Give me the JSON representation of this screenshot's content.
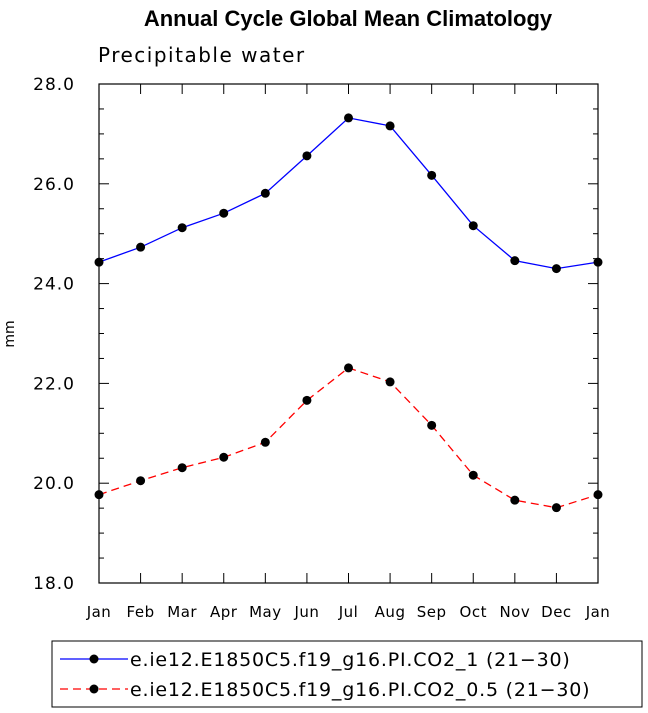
{
  "chart_data": {
    "type": "line",
    "title": "Annual Cycle Global Mean Climatology",
    "subtitle": "Precipitable water",
    "ylabel": "mm",
    "xlabel": "",
    "categories": [
      "Jan",
      "Feb",
      "Mar",
      "Apr",
      "May",
      "Jun",
      "Jul",
      "Aug",
      "Sep",
      "Oct",
      "Nov",
      "Dec",
      "Jan"
    ],
    "ylim": [
      18.0,
      28.0
    ],
    "yticks": [
      "18.0",
      "20.0",
      "22.0",
      "24.0",
      "26.0",
      "28.0"
    ],
    "series": [
      {
        "name": "e.ie12.E1850C5.f19_g16.PI.CO2_1 (21−30)",
        "color": "#0000ff",
        "dash": "solid",
        "values": [
          24.43,
          24.73,
          25.12,
          25.41,
          25.81,
          26.56,
          27.32,
          27.16,
          26.17,
          25.16,
          24.46,
          24.3,
          24.43
        ]
      },
      {
        "name": "e.ie12.E1850C5.f19_g16.PI.CO2_0.5 (21−30)",
        "color": "#ff0000",
        "dash": "dashed",
        "values": [
          19.77,
          20.05,
          20.31,
          20.52,
          20.82,
          21.66,
          22.31,
          22.03,
          21.16,
          20.16,
          19.66,
          19.51,
          19.77
        ]
      }
    ],
    "grid": false,
    "legend_position": "bottom"
  }
}
